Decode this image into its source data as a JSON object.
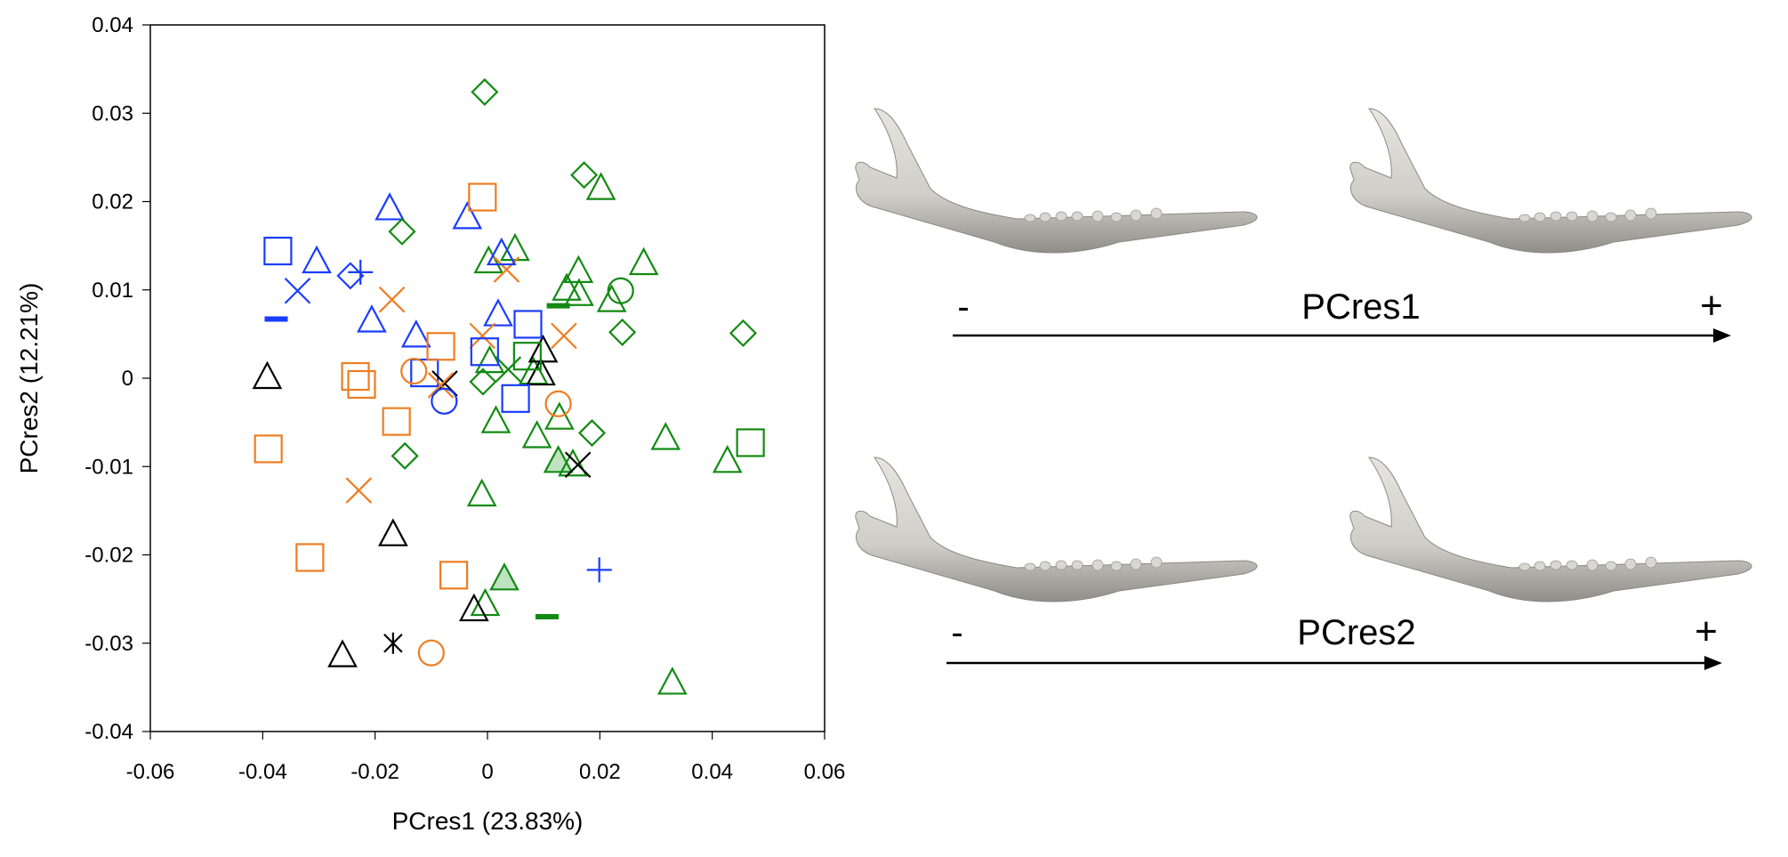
{
  "chart_data": {
    "type": "scatter",
    "xlabel": "PCres1 (23.83%)",
    "ylabel": "PCres2 (12.21%)",
    "xlim": [
      -0.06,
      0.06
    ],
    "ylim": [
      -0.04,
      0.04
    ],
    "xticks": [
      "-0.06",
      "-0.04",
      "-0.02",
      "0",
      "0.02",
      "0.04",
      "0.06"
    ],
    "yticks": [
      "-0.04",
      "-0.03",
      "-0.02",
      "-0.01",
      "0",
      "0.01",
      "0.02",
      "0.03",
      "0.04"
    ],
    "grid": false,
    "colors": {
      "blue": "#1a3cff",
      "orange": "#ee7d22",
      "green": "#128a12",
      "black": "#000000",
      "green_fill": "#bfe3c0"
    },
    "points": [
      {
        "x": -0.0373,
        "y": 0.0144,
        "color": "blue",
        "marker": "square"
      },
      {
        "x": -0.0304,
        "y": 0.0132,
        "color": "blue",
        "marker": "triangle"
      },
      {
        "x": -0.0244,
        "y": 0.0116,
        "color": "blue",
        "marker": "diamond"
      },
      {
        "x": -0.0226,
        "y": 0.012,
        "color": "blue",
        "marker": "plus"
      },
      {
        "x": -0.0338,
        "y": 0.0099,
        "color": "blue",
        "marker": "x"
      },
      {
        "x": -0.0376,
        "y": 0.0067,
        "color": "blue",
        "marker": "dash"
      },
      {
        "x": -0.0174,
        "y": 0.0192,
        "color": "blue",
        "marker": "triangle"
      },
      {
        "x": -0.0036,
        "y": 0.0182,
        "color": "blue",
        "marker": "triangle"
      },
      {
        "x": -0.0206,
        "y": 0.0065,
        "color": "blue",
        "marker": "triangle"
      },
      {
        "x": -0.0127,
        "y": 0.0048,
        "color": "blue",
        "marker": "triangle"
      },
      {
        "x": 0.0019,
        "y": 0.0072,
        "color": "blue",
        "marker": "triangle"
      },
      {
        "x": -0.0112,
        "y": 0.0006,
        "color": "blue",
        "marker": "square"
      },
      {
        "x": 0.0199,
        "y": -0.0217,
        "color": "blue",
        "marker": "plus"
      },
      {
        "x": -0.0005,
        "y": 0.0324,
        "color": "green",
        "marker": "diamond"
      },
      {
        "x": 0.0172,
        "y": 0.023,
        "color": "green",
        "marker": "diamond"
      },
      {
        "x": 0.0202,
        "y": 0.0215,
        "color": "green",
        "marker": "triangle"
      },
      {
        "x": -0.0152,
        "y": 0.0166,
        "color": "green",
        "marker": "diamond"
      },
      {
        "x": 0.0002,
        "y": 0.0132,
        "color": "green",
        "marker": "triangle"
      },
      {
        "x": 0.0049,
        "y": 0.0146,
        "color": "green",
        "marker": "triangle"
      },
      {
        "x": 0.0278,
        "y": 0.013,
        "color": "green",
        "marker": "triangle"
      },
      {
        "x": 0.0162,
        "y": 0.0121,
        "color": "green",
        "marker": "triangle"
      },
      {
        "x": 0.0163,
        "y": 0.0095,
        "color": "green",
        "marker": "triangle"
      },
      {
        "x": 0.0141,
        "y": 0.0101,
        "color": "green",
        "marker": "triangle"
      },
      {
        "x": 0.0221,
        "y": 0.0088,
        "color": "green",
        "marker": "triangle"
      },
      {
        "x": 0.0237,
        "y": 0.0099,
        "color": "green",
        "marker": "circle"
      },
      {
        "x": 0.0126,
        "y": 0.0082,
        "color": "green",
        "marker": "dash"
      },
      {
        "x": 0.024,
        "y": 0.0052,
        "color": "green",
        "marker": "diamond"
      },
      {
        "x": 0.0455,
        "y": 0.0051,
        "color": "green",
        "marker": "diamond"
      },
      {
        "x": 0.0004,
        "y": 0.0019,
        "color": "green",
        "marker": "triangle"
      },
      {
        "x": 0.0082,
        "y": 0.0006,
        "color": "green",
        "marker": "triangle"
      },
      {
        "x": 0.0037,
        "y": 0.001,
        "color": "green",
        "marker": "x"
      },
      {
        "x": -0.0008,
        "y": -0.0004,
        "color": "green",
        "marker": "diamond"
      },
      {
        "x": 0.0128,
        "y": -0.0045,
        "color": "green",
        "marker": "triangle"
      },
      {
        "x": 0.0015,
        "y": -0.0049,
        "color": "green",
        "marker": "triangle"
      },
      {
        "x": 0.0088,
        "y": -0.0066,
        "color": "green",
        "marker": "triangle"
      },
      {
        "x": 0.0186,
        "y": -0.0062,
        "color": "green",
        "marker": "diamond"
      },
      {
        "x": 0.0317,
        "y": -0.0068,
        "color": "green",
        "marker": "triangle"
      },
      {
        "x": 0.0468,
        "y": -0.0073,
        "color": "green",
        "marker": "square"
      },
      {
        "x": 0.0427,
        "y": -0.0094,
        "color": "green",
        "marker": "triangle"
      },
      {
        "x": 0.0126,
        "y": -0.0094,
        "color": "green",
        "marker": "triangle-filled"
      },
      {
        "x": 0.0152,
        "y": -0.0098,
        "color": "green",
        "marker": "triangle"
      },
      {
        "x": -0.0147,
        "y": -0.0088,
        "color": "green",
        "marker": "diamond"
      },
      {
        "x": -0.001,
        "y": -0.0132,
        "color": "green",
        "marker": "triangle"
      },
      {
        "x": -0.0004,
        "y": -0.0256,
        "color": "green",
        "marker": "triangle"
      },
      {
        "x": 0.003,
        "y": -0.0227,
        "color": "green",
        "marker": "triangle-filled"
      },
      {
        "x": 0.0106,
        "y": -0.027,
        "color": "green",
        "marker": "dash"
      },
      {
        "x": 0.0329,
        "y": -0.0345,
        "color": "green",
        "marker": "triangle"
      },
      {
        "x": -0.0392,
        "y": 0.0001,
        "color": "black",
        "marker": "triangle"
      },
      {
        "x": 0.0099,
        "y": 0.0031,
        "color": "black",
        "marker": "triangle"
      },
      {
        "x": 0.0095,
        "y": 0.0005,
        "color": "black",
        "marker": "triangle"
      },
      {
        "x": -0.0076,
        "y": -0.0006,
        "color": "black",
        "marker": "x"
      },
      {
        "x": 0.0161,
        "y": -0.0098,
        "color": "black",
        "marker": "x"
      },
      {
        "x": -0.0168,
        "y": -0.0177,
        "color": "black",
        "marker": "triangle"
      },
      {
        "x": -0.0024,
        "y": -0.0262,
        "color": "black",
        "marker": "triangle"
      },
      {
        "x": -0.0258,
        "y": -0.0314,
        "color": "black",
        "marker": "triangle"
      },
      {
        "x": -0.0168,
        "y": -0.03,
        "color": "black",
        "marker": "asterisk"
      },
      {
        "x": -0.0009,
        "y": 0.0205,
        "color": "orange",
        "marker": "square"
      },
      {
        "x": -0.017,
        "y": 0.0089,
        "color": "orange",
        "marker": "x"
      },
      {
        "x": 0.0034,
        "y": 0.0123,
        "color": "orange",
        "marker": "x"
      },
      {
        "x": 0.0136,
        "y": 0.0048,
        "color": "orange",
        "marker": "x"
      },
      {
        "x": -0.0009,
        "y": 0.0048,
        "color": "orange",
        "marker": "x"
      },
      {
        "x": -0.0083,
        "y": 0.0036,
        "color": "orange",
        "marker": "square"
      },
      {
        "x": -0.0224,
        "y": -0.0007,
        "color": "orange",
        "marker": "square"
      },
      {
        "x": -0.0235,
        "y": 0.0002,
        "color": "orange",
        "marker": "square"
      },
      {
        "x": -0.0131,
        "y": 0.0008,
        "color": "orange",
        "marker": "circle"
      },
      {
        "x": -0.0083,
        "y": -0.0008,
        "color": "orange",
        "marker": "x"
      },
      {
        "x": -0.0162,
        "y": -0.0049,
        "color": "orange",
        "marker": "square"
      },
      {
        "x": 0.0126,
        "y": -0.0029,
        "color": "orange",
        "marker": "circle"
      },
      {
        "x": -0.039,
        "y": -0.008,
        "color": "orange",
        "marker": "square"
      },
      {
        "x": -0.0229,
        "y": -0.0127,
        "color": "orange",
        "marker": "x"
      },
      {
        "x": -0.0316,
        "y": -0.0203,
        "color": "orange",
        "marker": "square"
      },
      {
        "x": -0.006,
        "y": -0.0223,
        "color": "orange",
        "marker": "square"
      },
      {
        "x": -0.01,
        "y": -0.0311,
        "color": "orange",
        "marker": "circle"
      },
      {
        "x": 0.0025,
        "y": 0.0141,
        "color": "blue",
        "marker": "triangle"
      },
      {
        "x": -0.0077,
        "y": -0.0026,
        "color": "blue",
        "marker": "circle"
      },
      {
        "x": -0.0005,
        "y": 0.003,
        "color": "blue",
        "marker": "square"
      },
      {
        "x": 0.0072,
        "y": 0.0061,
        "color": "blue",
        "marker": "square"
      },
      {
        "x": 0.0071,
        "y": 0.0025,
        "color": "green",
        "marker": "square"
      },
      {
        "x": 0.005,
        "y": -0.0023,
        "color": "blue",
        "marker": "square"
      }
    ]
  },
  "shape_panel": {
    "pc1": {
      "label": "PCres1",
      "minus": "-",
      "plus": "+"
    },
    "pc2": {
      "label": "PCres2",
      "minus": "-",
      "plus": "+"
    },
    "mandible_icon": "mandible-3d-render"
  }
}
